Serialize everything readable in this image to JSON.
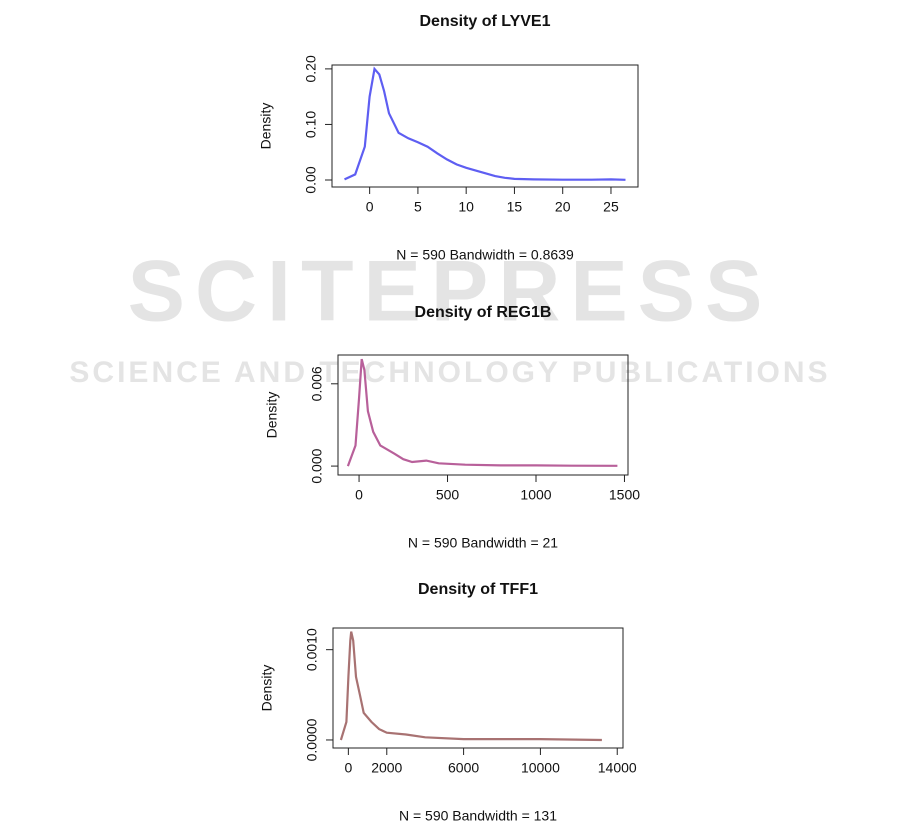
{
  "watermark": {
    "title": "SCITEPRESS",
    "subtitle": "SCIENCE AND TECHNOLOGY PUBLICATIONS"
  },
  "chart_data": [
    {
      "type": "line",
      "title": "Density of LYVE1",
      "x_label": "N = 590   Bandwidth = 0.8639",
      "y_label": "Density",
      "color": "#5e5ef2",
      "x": [
        -2.6,
        -1.5,
        -0.5,
        0,
        0.5,
        1,
        1.5,
        2,
        3,
        4,
        5,
        6,
        7,
        8,
        9,
        10,
        11,
        12,
        13,
        14,
        15,
        17,
        20,
        23,
        25,
        26.5
      ],
      "values": [
        0.001,
        0.01,
        0.06,
        0.15,
        0.2,
        0.19,
        0.16,
        0.12,
        0.085,
        0.075,
        0.068,
        0.06,
        0.048,
        0.037,
        0.028,
        0.022,
        0.017,
        0.012,
        0.007,
        0.004,
        0.002,
        0.001,
        0.0005,
        0.0005,
        0.001,
        0.0003
      ],
      "xlim": [
        -3.9,
        27.8
      ],
      "xticks": [
        0,
        5,
        10,
        15,
        20,
        25
      ],
      "ylim": [
        -0.0126,
        0.207
      ],
      "yticks": [
        {
          "value": 0,
          "label": "0.00"
        },
        {
          "value": 0.1,
          "label": "0.10"
        },
        {
          "value": 0.2,
          "label": "0.20"
        }
      ]
    },
    {
      "type": "line",
      "title": "Density of REG1B",
      "x_label": "N = 590   Bandwidth = 21",
      "y_label": "Density",
      "color": "#b8609a",
      "x": [
        -63,
        -20,
        0,
        15,
        30,
        50,
        80,
        120,
        200,
        250,
        300,
        380,
        450,
        600,
        800,
        1000,
        1200,
        1460
      ],
      "values": [
        0,
        0.0015,
        0.005,
        0.0078,
        0.007,
        0.004,
        0.0025,
        0.0015,
        0.0009,
        0.0005,
        0.0003,
        0.0004,
        0.0002,
        0.0001,
        5e-05,
        5e-05,
        3e-05,
        2e-05
      ],
      "xlim": [
        -119,
        1520
      ],
      "xticks": [
        0,
        500,
        1000,
        1500
      ],
      "ylim": [
        -0.00065,
        0.0081
      ],
      "yticks": [
        {
          "value": 0,
          "label": "0.000"
        },
        0.006
      ]
    },
    {
      "type": "line",
      "title": "Density of TFF1",
      "x_label": "N = 590   Bandwidth = 131",
      "y_label": "Density",
      "color": "#a87272",
      "x": [
        -390,
        -100,
        0,
        100,
        150,
        250,
        400,
        600,
        800,
        1200,
        1600,
        2000,
        3000,
        4000,
        6000,
        10000,
        13200
      ],
      "values": [
        0,
        0.0002,
        0.0007,
        0.0011,
        0.0012,
        0.0011,
        0.0007,
        0.0005,
        0.0003,
        0.0002,
        0.00012,
        8e-05,
        6e-05,
        3e-05,
        1e-05,
        1e-05,
        0
      ],
      "xlim": [
        -800,
        14300
      ],
      "xticks": [
        0,
        2000,
        6000,
        10000,
        14000
      ],
      "ylim": [
        -8.9e-05,
        0.00124
      ],
      "yticks": [
        {
          "value": 0,
          "label": "0.0000"
        },
        {
          "value": 0.001,
          "label": "0.0010"
        }
      ]
    }
  ]
}
